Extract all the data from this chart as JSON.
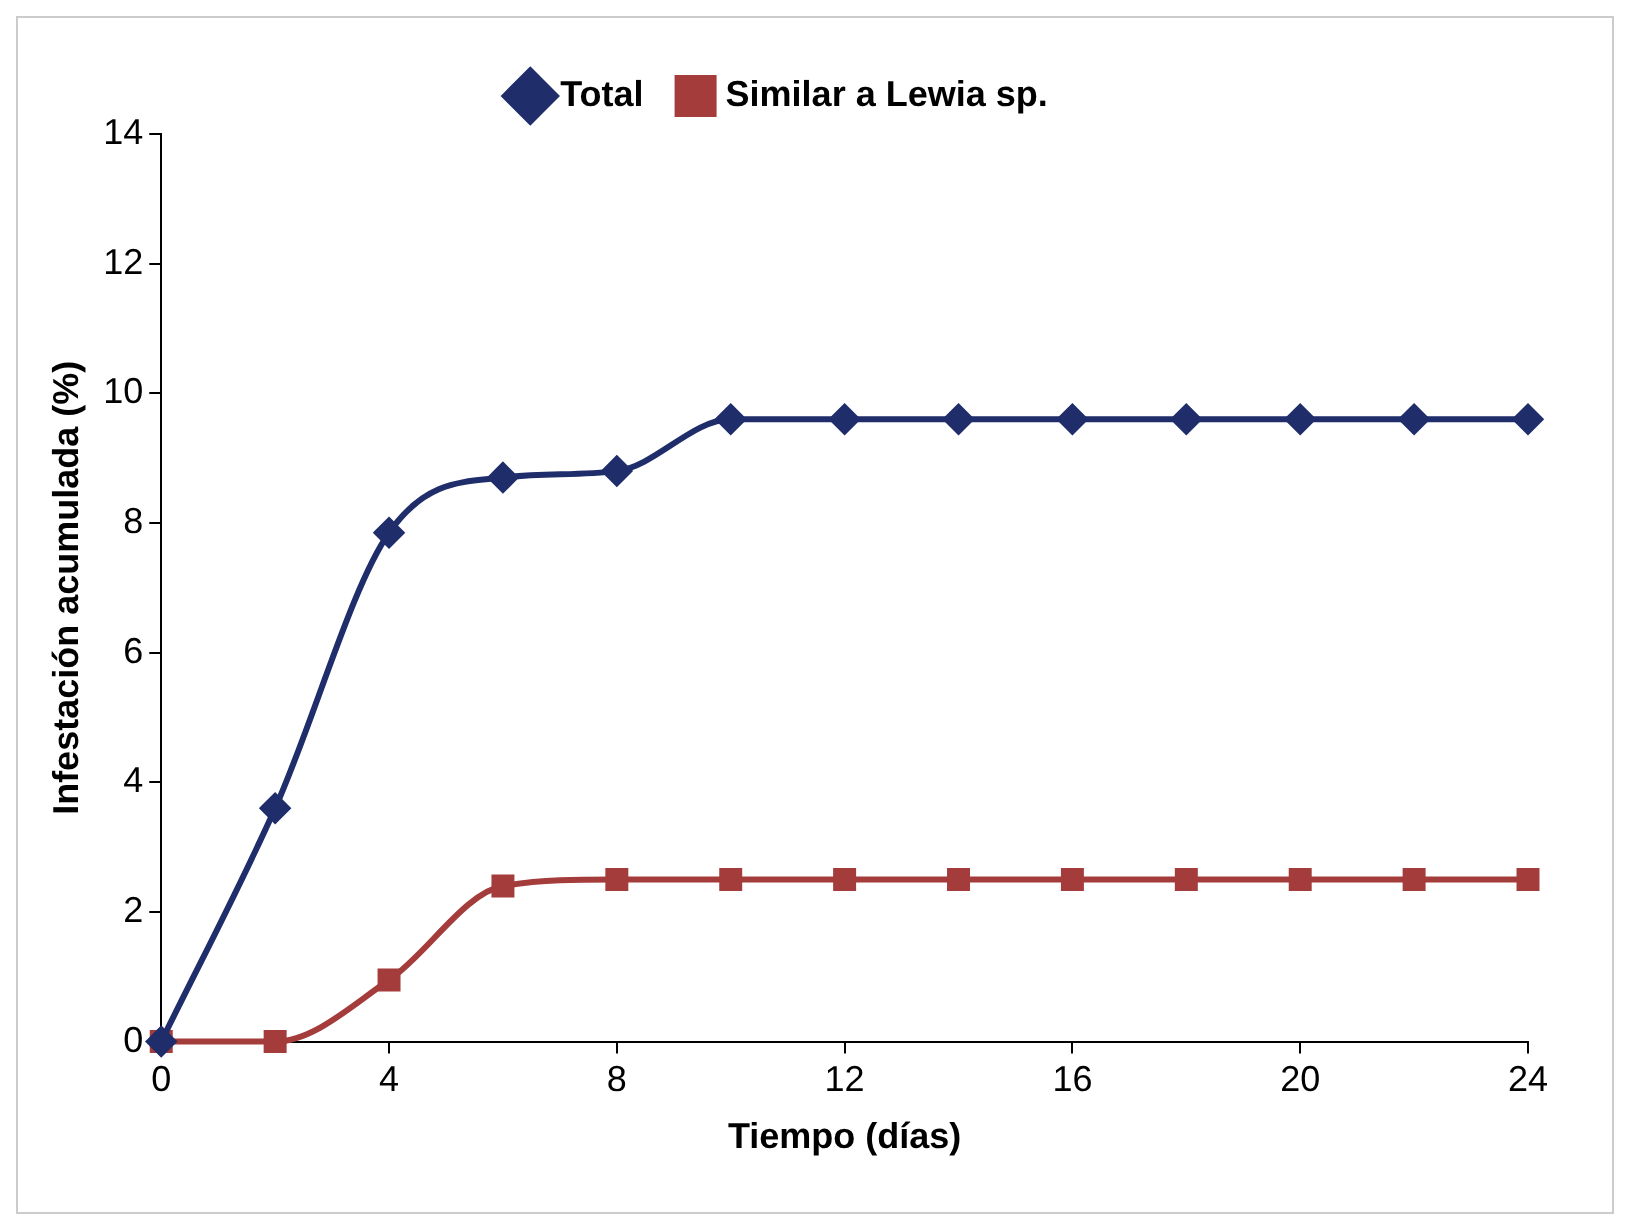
{
  "chart_data": {
    "type": "line",
    "xlabel": "Tiempo (días)",
    "ylabel": "Infestación acumulada (%)",
    "x": [
      0,
      2,
      4,
      6,
      8,
      10,
      12,
      14,
      16,
      18,
      20,
      22,
      24
    ],
    "series": [
      {
        "name": "Total",
        "color": "#1f2d6b",
        "marker": "diamond",
        "values": [
          0,
          3.6,
          7.85,
          8.7,
          8.8,
          9.6,
          9.6,
          9.6,
          9.6,
          9.6,
          9.6,
          9.6,
          9.6
        ]
      },
      {
        "name": "Similar a Lewia sp.",
        "color": "#a33c3a",
        "marker": "square",
        "values": [
          0,
          0,
          0.95,
          2.4,
          2.5,
          2.5,
          2.5,
          2.5,
          2.5,
          2.5,
          2.5,
          2.5,
          2.5
        ]
      }
    ],
    "xlim": [
      0,
      24
    ],
    "xticks": [
      0,
      4,
      8,
      12,
      16,
      20,
      24
    ],
    "ylim": [
      0,
      14
    ],
    "yticks": [
      0,
      2,
      4,
      6,
      8,
      10,
      12,
      14
    ],
    "grid": false,
    "legend": "top",
    "line_style": "solid"
  }
}
